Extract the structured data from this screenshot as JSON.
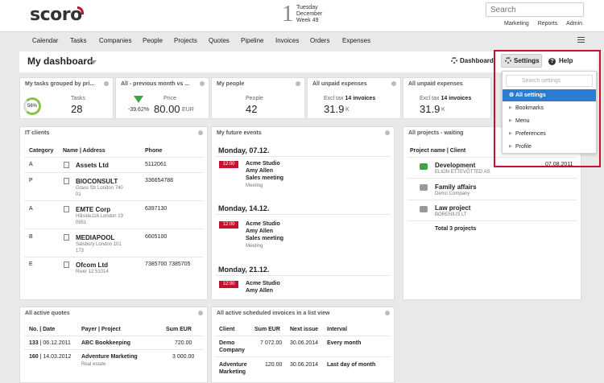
{
  "brand": {
    "name": "scoro"
  },
  "date": {
    "day_num": "1",
    "weekday": "Tuesday",
    "month": "December",
    "week": "Week 49"
  },
  "search": {
    "placeholder": "Search"
  },
  "top_links": [
    "Marketing",
    "Reports",
    "Admin"
  ],
  "nav": [
    "Calendar",
    "Tasks",
    "Companies",
    "People",
    "Projects",
    "Quotes",
    "Pipeline",
    "Invoices",
    "Orders",
    "Expenses"
  ],
  "dashboard": {
    "title": "My dashboard",
    "dashboard_link": "Dashboard",
    "settings": "Settings",
    "help": "Help"
  },
  "settings_menu": {
    "search_placeholder": "Search settings",
    "items": [
      "All settings",
      "Bookmarks",
      "Menu",
      "Preferences",
      "Profile"
    ]
  },
  "widgets": {
    "tasks": {
      "title": "My tasks grouped by pri...",
      "percent": "56%",
      "label": "Tasks",
      "value": "28"
    },
    "price": {
      "title": "All - previous month vs ...",
      "change": "-39.62%",
      "label": "Price",
      "value": "80.00",
      "unit": "EUR"
    },
    "people": {
      "title": "My people",
      "label": "People",
      "value": "42"
    },
    "expenses1": {
      "title": "All unpaid expenses",
      "label": "Excl tax",
      "count": "14 invoices",
      "value": "31.9",
      "unit": "K"
    },
    "expenses2": {
      "title": "All unpaid expenses",
      "label": "Excl tax",
      "count": "14 invoices",
      "value": "31.9",
      "unit": "K"
    }
  },
  "it_clients": {
    "title": "IT clients",
    "headers": [
      "Category",
      "Name | Address",
      "Phone"
    ],
    "rows": [
      {
        "cat": "A",
        "name": "Assets Ltd",
        "addr": "",
        "addr2": "",
        "phone": "5112061"
      },
      {
        "cat": "P",
        "name": "BIOCONSULT",
        "addr": "Grass Str London 740",
        "addr2": "01",
        "phone": "336654788"
      },
      {
        "cat": "A",
        "name": "EMTE Corp",
        "addr": "Hillside116 London 19",
        "addr2": "0951",
        "phone": "6397130"
      },
      {
        "cat": "B",
        "name": "MEDIAPOOL",
        "addr": "Salsbury London 101",
        "addr2": "173",
        "phone": "6605100"
      },
      {
        "cat": "E",
        "name": "Ofcom Ltd",
        "addr": "River 12 51014",
        "addr2": "",
        "phone": "7385700 7385705"
      }
    ]
  },
  "events": {
    "title": "My future events",
    "days": [
      {
        "date": "Monday, 07.12.",
        "time": "12:00",
        "lines": [
          "Acme Studio",
          "Amy Allen",
          "Sales meeting"
        ],
        "type": "Meeting"
      },
      {
        "date": "Monday, 14.12.",
        "time": "12:00",
        "lines": [
          "Acme Studio",
          "Amy Allen",
          "Sales meeting"
        ],
        "type": "Meeting"
      },
      {
        "date": "Monday, 21.12.",
        "time": "12:00",
        "lines": [
          "Acme Studio",
          "Amy Allen"
        ],
        "type": ""
      }
    ]
  },
  "projects": {
    "title": "All projects - waiting",
    "header": "Project name | Client",
    "rows": [
      {
        "name": "Development",
        "client": "ELION ETTEVÕTTED AS",
        "date": "07.08.2011",
        "icon_color": "#3aa648"
      },
      {
        "name": "Family affairs",
        "client": "Demo Company",
        "date": "",
        "icon_color": "#999999"
      },
      {
        "name": "Law project",
        "client": "BORENIUS LT",
        "date": "",
        "icon_color": "#999999"
      }
    ],
    "total": "Total 3 projects"
  },
  "quotes": {
    "title": "All active quotes",
    "headers": [
      "No. | Date",
      "Payer | Project",
      "Sum EUR"
    ],
    "rows": [
      {
        "no": "133",
        "date": "06.12.2011",
        "payer": "ABC Bookkeeping",
        "project": "",
        "sum": "720.00"
      },
      {
        "no": "160",
        "date": "14.03.2012",
        "payer": "Adventure Marketing",
        "project": "Real estate",
        "sum": "3 000.00"
      }
    ]
  },
  "invoices": {
    "title": "All active scheduled invoices in a list view",
    "headers": [
      "Client",
      "Sum EUR",
      "Next issue",
      "Interval"
    ],
    "rows": [
      {
        "client": "Demo",
        "client2": "Company",
        "sum": "7 072.00",
        "next": "30.06.2014",
        "interval": "Every month"
      },
      {
        "client": "Adventure",
        "client2": "Marketing",
        "sum": "120.00",
        "next": "30.06.2014",
        "interval": "Last day of month"
      }
    ]
  }
}
